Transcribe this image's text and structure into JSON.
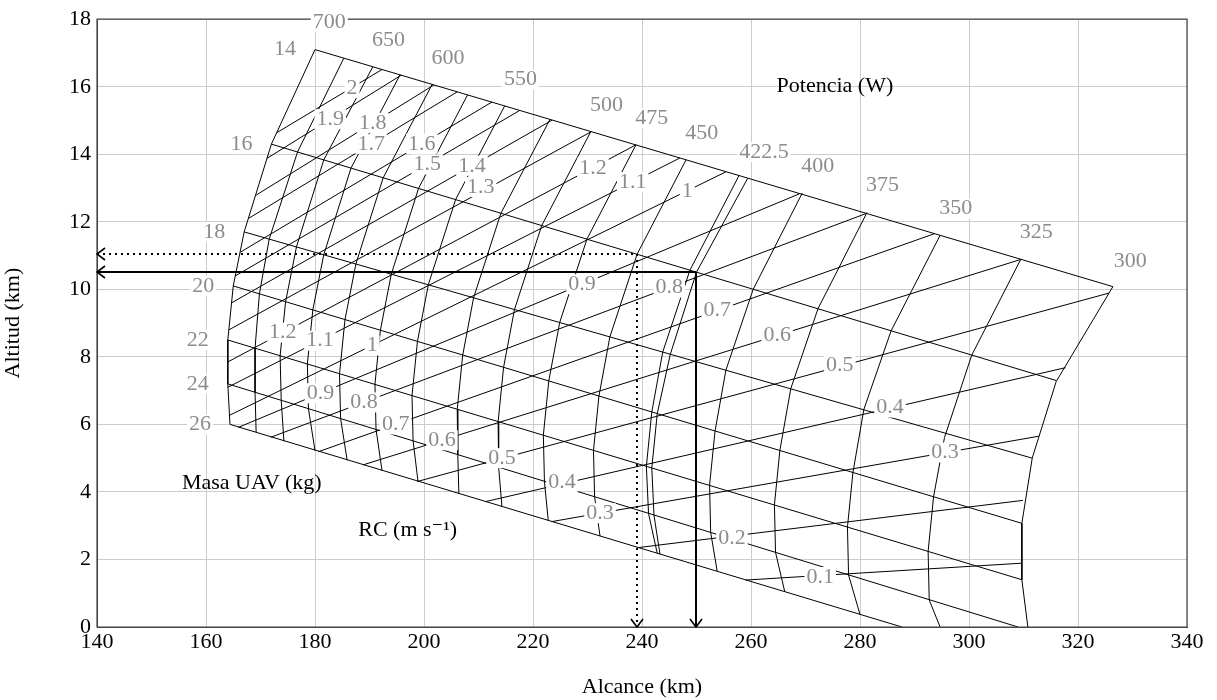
{
  "chart_data": {
    "type": "line",
    "xlabel": "Alcance (km)",
    "ylabel": "Altitud (km)",
    "xlim": [
      140,
      340
    ],
    "xticks": [
      140,
      160,
      180,
      200,
      220,
      240,
      260,
      280,
      300,
      320,
      340
    ],
    "ylim": [
      0,
      18
    ],
    "yticks": [
      0,
      2,
      4,
      6,
      8,
      10,
      12,
      14,
      16,
      18
    ],
    "grid": true,
    "series": [
      {
        "name": "700",
        "color": "#000000",
        "x": [
          180,
          172,
          167,
          165,
          164,
          164,
          164.4
        ],
        "values": [
          17.1,
          14.3,
          11.7,
          10.1,
          8.5,
          7.2,
          6.0
        ]
      },
      {
        "color": "#000000",
        "x": [
          185.3,
          176.8,
          171.6,
          169.8,
          169,
          169,
          169.2
        ],
        "values": [
          16.85,
          14.07,
          11.49,
          9.87,
          8.26,
          6.95,
          5.77
        ]
      },
      {
        "name": "650",
        "color": "#000000",
        "x": [
          190.6,
          181.6,
          176.6,
          174.6,
          173.6,
          173.8,
          174.3
        ],
        "values": [
          16.59,
          13.83,
          11.26,
          9.63,
          8.03,
          6.71,
          5.5
        ]
      },
      {
        "color": "#000000",
        "x": [
          195.6,
          186.6,
          181.6,
          179.6,
          178.6,
          178.8,
          180
        ],
        "values": [
          16.35,
          13.59,
          11.02,
          9.39,
          7.79,
          6.46,
          5.22
        ]
      },
      {
        "name": "600",
        "color": "#000000",
        "x": [
          201.5,
          192.5,
          187.5,
          185.5,
          184.5,
          184.7,
          185.9
        ],
        "values": [
          16.07,
          13.3,
          10.75,
          9.1,
          7.5,
          6.17,
          4.94
        ]
      },
      {
        "color": "#000000",
        "x": [
          208,
          199,
          194,
          192,
          191,
          191.2,
          192.3
        ],
        "values": [
          15.76,
          12.99,
          10.45,
          8.79,
          7.19,
          5.85,
          4.63
        ]
      },
      {
        "name": "550",
        "color": "#000000",
        "x": [
          214.8,
          205.8,
          200.8,
          198.8,
          197.8,
          198,
          198.9
        ],
        "values": [
          15.43,
          12.66,
          10.14,
          8.46,
          6.85,
          5.51,
          4.31
        ]
      },
      {
        "color": "#000000",
        "x": [
          223.1,
          214.1,
          209.1,
          207.1,
          206.1,
          206.2,
          206.4
        ],
        "values": [
          15.03,
          12.25,
          9.75,
          8.05,
          6.45,
          5.1,
          3.94
        ]
      },
      {
        "name": "500",
        "color": "#000000",
        "x": [
          230.6,
          221.6,
          216.6,
          214.6,
          213.6,
          213.7,
          214.3
        ],
        "values": [
          14.67,
          11.89,
          9.4,
          7.69,
          6.08,
          4.73,
          3.56
        ]
      },
      {
        "name": "475",
        "color": "#000000",
        "x": [
          238.9,
          229.9,
          224.9,
          222.9,
          221.9,
          222.1,
          222.8
        ],
        "values": [
          14.28,
          11.49,
          9.02,
          7.29,
          5.68,
          4.31,
          3.15
        ]
      },
      {
        "name": "450",
        "color": "#000000",
        "x": [
          248.1,
          239.1,
          234.1,
          232.1,
          231.1,
          231.3,
          232.3
        ],
        "values": [
          13.84,
          11.04,
          8.59,
          6.84,
          5.23,
          3.86,
          2.69
        ]
      },
      {
        "color": "#000000",
        "x": [
          257.8,
          248.8,
          243.8,
          241.8,
          240.8,
          241.2,
          242.8
        ],
        "values": [
          13.37,
          10.57,
          8.14,
          6.37,
          4.76,
          3.36,
          2.18
        ]
      },
      {
        "name": "422.5",
        "color": "#000000",
        "x": [
          259.4,
          250,
          245.2,
          242.8,
          241.8,
          242.2,
          243.3
        ],
        "values": [
          13.29,
          10.51,
          8.08,
          6.32,
          4.71,
          3.31,
          2.15
        ]
      },
      {
        "name": "400",
        "color": "#000000",
        "x": [
          269.4,
          260.4,
          255.4,
          253.4,
          252.4,
          252.6,
          253.8
        ],
        "values": [
          12.85,
          10,
          7.61,
          5.8,
          4.2,
          2.8,
          1.65
        ]
      },
      {
        "name": "375",
        "color": "#000000",
        "x": [
          281.3,
          272.3,
          267.3,
          265.3,
          264.3,
          264.5,
          266.2
        ],
        "values": [
          12.28,
          9.43,
          7.06,
          5.23,
          3.62,
          2.21,
          1.04
        ]
      },
      {
        "name": "350",
        "color": "#000000",
        "x": [
          294.7,
          285.7,
          280.7,
          278.7,
          277.7,
          277.9,
          280
        ],
        "values": [
          11.6,
          8.77,
          6.44,
          4.57,
          2.96,
          1.54,
          0.37
        ]
      },
      {
        "name": "325",
        "color": "#000000",
        "x": [
          309.5,
          300.5,
          295.5,
          293.5,
          292.5,
          292.7,
          294.7
        ],
        "values": [
          10.89,
          8.05,
          5.61,
          3.86,
          2.24,
          0.8,
          0
        ]
      },
      {
        "name": "300",
        "color": "#000000",
        "x": [
          326.4,
          316,
          311.6,
          309.7,
          309.7,
          310.8
        ],
        "values": [
          10.08,
          7.27,
          5,
          3.07,
          1.4,
          0
        ]
      },
      {
        "name": "14",
        "color": "#000000",
        "x": [
          180,
          326.4
        ],
        "values": [
          17.1,
          10.08
        ]
      },
      {
        "name": "16",
        "color": "#000000",
        "x": [
          172,
          316
        ],
        "values": [
          14.3,
          7.3
        ]
      },
      {
        "name": "18",
        "color": "#000000",
        "x": [
          167,
          311.6
        ],
        "values": [
          11.7,
          5
        ]
      },
      {
        "name": "20",
        "color": "#000000",
        "x": [
          165,
          309.7
        ],
        "values": [
          10.1,
          3.07
        ]
      },
      {
        "name": "22",
        "color": "#000000",
        "x": [
          164,
          309.7
        ],
        "values": [
          8.5,
          1.4
        ]
      },
      {
        "name": "24",
        "color": "#000000",
        "x": [
          164,
          309
        ],
        "values": [
          7.2,
          0
        ]
      },
      {
        "name": "26",
        "color": "#000000",
        "x": [
          164.4,
          287.7
        ],
        "values": [
          6,
          0
        ]
      },
      {
        "color": "#000000",
        "x": [
          173,
          192.3
        ],
        "values": [
          14.64,
          16.51
        ]
      },
      {
        "color": "#000000",
        "x": [
          171.2,
          195.8
        ],
        "values": [
          13.88,
          16.34
        ]
      },
      {
        "color": "#000000",
        "x": [
          169.2,
          201.8
        ],
        "values": [
          12.79,
          16.05
        ]
      },
      {
        "color": "#000000",
        "x": [
          167.8,
          206.1
        ],
        "values": [
          12.1,
          15.85
        ]
      },
      {
        "color": "#000000",
        "x": [
          166.3,
          212.5
        ],
        "values": [
          11.1,
          15.55
        ]
      },
      {
        "color": "#000000",
        "x": [
          165.4,
          217.6
        ],
        "values": [
          10.4,
          15.3
        ]
      },
      {
        "color": "#000000",
        "x": [
          164.7,
          223.5
        ],
        "values": [
          9.6,
          15.01
        ]
      },
      {
        "color": "#000000",
        "x": [
          164.2,
          230.7
        ],
        "values": [
          8.8,
          14.67
        ]
      },
      {
        "color": "#000000",
        "x": [
          164,
          238.9
        ],
        "values": [
          7.85,
          14.28
        ]
      },
      {
        "color": "#000000",
        "x": [
          164,
          246.95
        ],
        "values": [
          7.1,
          13.89
        ]
      },
      {
        "color": "#000000",
        "x": [
          164.2,
          255.4
        ],
        "values": [
          6.26,
          13.48
        ]
      },
      {
        "color": "#000000",
        "x": [
          165.9,
          268.9
        ],
        "values": [
          5.91,
          12.83
        ]
      },
      {
        "color": "#000000",
        "x": [
          171.9,
          281.2
        ],
        "values": [
          5.62,
          12.25
        ]
      },
      {
        "color": "#000000",
        "x": [
          180.6,
          293.7
        ],
        "values": [
          5.19,
          11.65
        ]
      },
      {
        "color": "#000000",
        "x": [
          188.8,
          309.6
        ],
        "values": [
          4.8,
          10.89
        ]
      },
      {
        "color": "#000000",
        "x": [
          198.8,
          325.7
        ],
        "values": [
          4.31,
          9.89
        ]
      },
      {
        "color": "#000000",
        "x": [
          211.2,
          317.7
        ],
        "values": [
          3.71,
          7.68
        ]
      },
      {
        "color": "#000000",
        "x": [
          223.4,
          312.8
        ],
        "values": [
          3.12,
          5.65
        ]
      },
      {
        "color": "#000000",
        "x": [
          239.2,
          309.9
        ],
        "values": [
          2.35,
          3.75
        ]
      },
      {
        "color": "#000000",
        "x": [
          259,
          309.7
        ],
        "values": [
          1.39,
          1.89
        ]
      }
    ],
    "annotations": [
      {
        "text": "2",
        "x": 186.8,
        "y": 15.96
      },
      {
        "text": "1.9",
        "x": 182.8,
        "y": 15.04
      },
      {
        "text": "1.8",
        "x": 190.6,
        "y": 14.93
      },
      {
        "text": "1.7",
        "x": 190.3,
        "y": 14.3
      },
      {
        "text": "1.6",
        "x": 199.6,
        "y": 14.31
      },
      {
        "text": "1.5",
        "x": 200.6,
        "y": 13.7
      },
      {
        "text": "1.4",
        "x": 208.8,
        "y": 13.66
      },
      {
        "text": "1.3",
        "x": 210.4,
        "y": 13.03
      },
      {
        "text": "1.2",
        "x": 231,
        "y": 13.6
      },
      {
        "text": "1.1",
        "x": 238.3,
        "y": 13.18
      },
      {
        "text": "1",
        "x": 248.3,
        "y": 12.92
      },
      {
        "text": "0.9",
        "x": 229,
        "y": 10.15
      },
      {
        "text": "0.8",
        "x": 245,
        "y": 10.05
      },
      {
        "text": "0.7",
        "x": 253.8,
        "y": 9.37
      },
      {
        "text": "0.6",
        "x": 264.8,
        "y": 8.63
      },
      {
        "text": "0.5",
        "x": 276.3,
        "y": 7.74
      },
      {
        "text": "0.4",
        "x": 285.5,
        "y": 6.5
      },
      {
        "text": "0.3",
        "x": 295.6,
        "y": 5.17
      },
      {
        "text": "0.2",
        "x": 256.5,
        "y": 2.63
      },
      {
        "text": "0.1",
        "x": 272.7,
        "y": 1.48
      },
      {
        "text": "1.2",
        "x": 174.1,
        "y": 8.72
      },
      {
        "text": "1.1",
        "x": 180.9,
        "y": 8.48
      },
      {
        "text": "1",
        "x": 190.5,
        "y": 8.34
      },
      {
        "text": "0.9",
        "x": 181,
        "y": 6.92
      },
      {
        "text": "0.8",
        "x": 189,
        "y": 6.65
      },
      {
        "text": "0.7",
        "x": 194.8,
        "y": 6.0
      },
      {
        "text": "0.6",
        "x": 203.3,
        "y": 5.53
      },
      {
        "text": "0.5",
        "x": 214.3,
        "y": 5
      },
      {
        "text": "0.4",
        "x": 225.3,
        "y": 4.28
      },
      {
        "text": "0.3",
        "x": 232.3,
        "y": 3.37
      },
      "Potencia (W)",
      "Masa UAV (kg)",
      "RC (m s⁻¹)"
    ]
  }
}
